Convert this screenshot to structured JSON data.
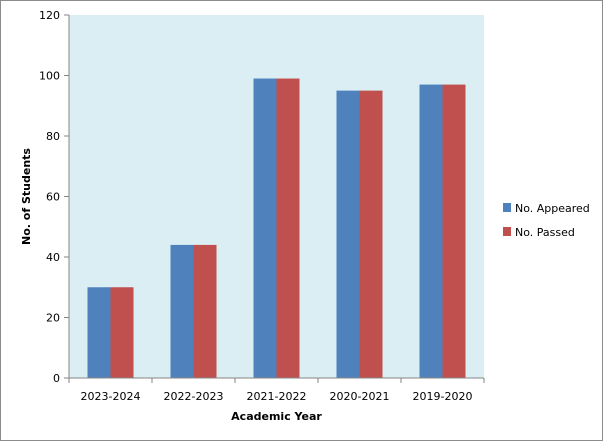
{
  "chart_data": {
    "type": "bar",
    "title": "",
    "xlabel": "Academic Year",
    "ylabel": "No. of Students",
    "categories": [
      "2023-2024",
      "2022-2023",
      "2021-2022",
      "2020-2021",
      "2019-2020"
    ],
    "series": [
      {
        "name": "No. Appeared",
        "color": "#4f81bd",
        "values": [
          30,
          44,
          99,
          95,
          97
        ]
      },
      {
        "name": "No. Passed",
        "color": "#c0504d",
        "values": [
          30,
          44,
          99,
          95,
          97
        ]
      }
    ],
    "ylim": [
      0,
      120
    ],
    "yticks": [
      0,
      20,
      40,
      60,
      80,
      100,
      120
    ],
    "grid": false,
    "legend": "right",
    "plot_background": "#dbeef3"
  }
}
